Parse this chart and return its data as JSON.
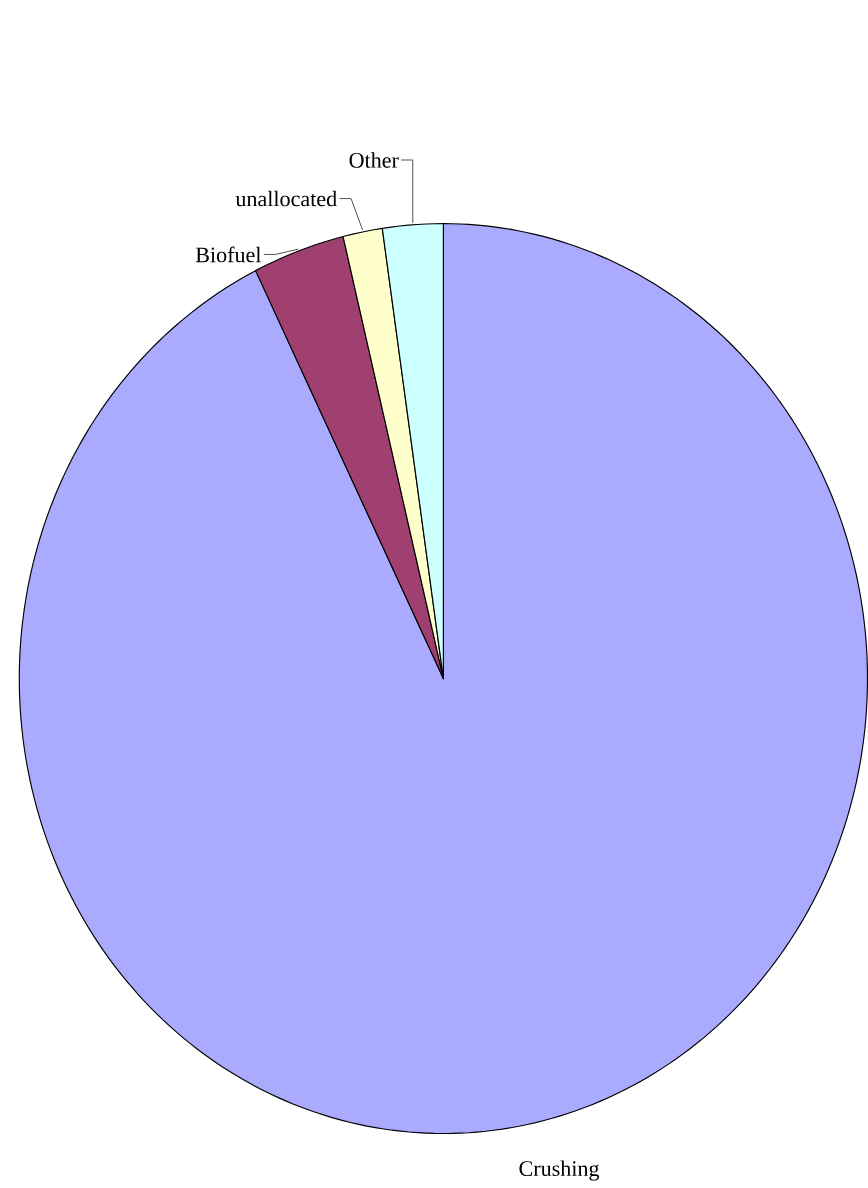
{
  "chart_data": {
    "type": "pie",
    "categories": [
      "Crushing",
      "Biofuel",
      "unallocated",
      "Other"
    ],
    "values": [
      92.7,
      3.5,
      1.5,
      2.3
    ],
    "colors": [
      "#aaaaff",
      "#a04070",
      "#ffffcc",
      "#ccffff"
    ]
  }
}
